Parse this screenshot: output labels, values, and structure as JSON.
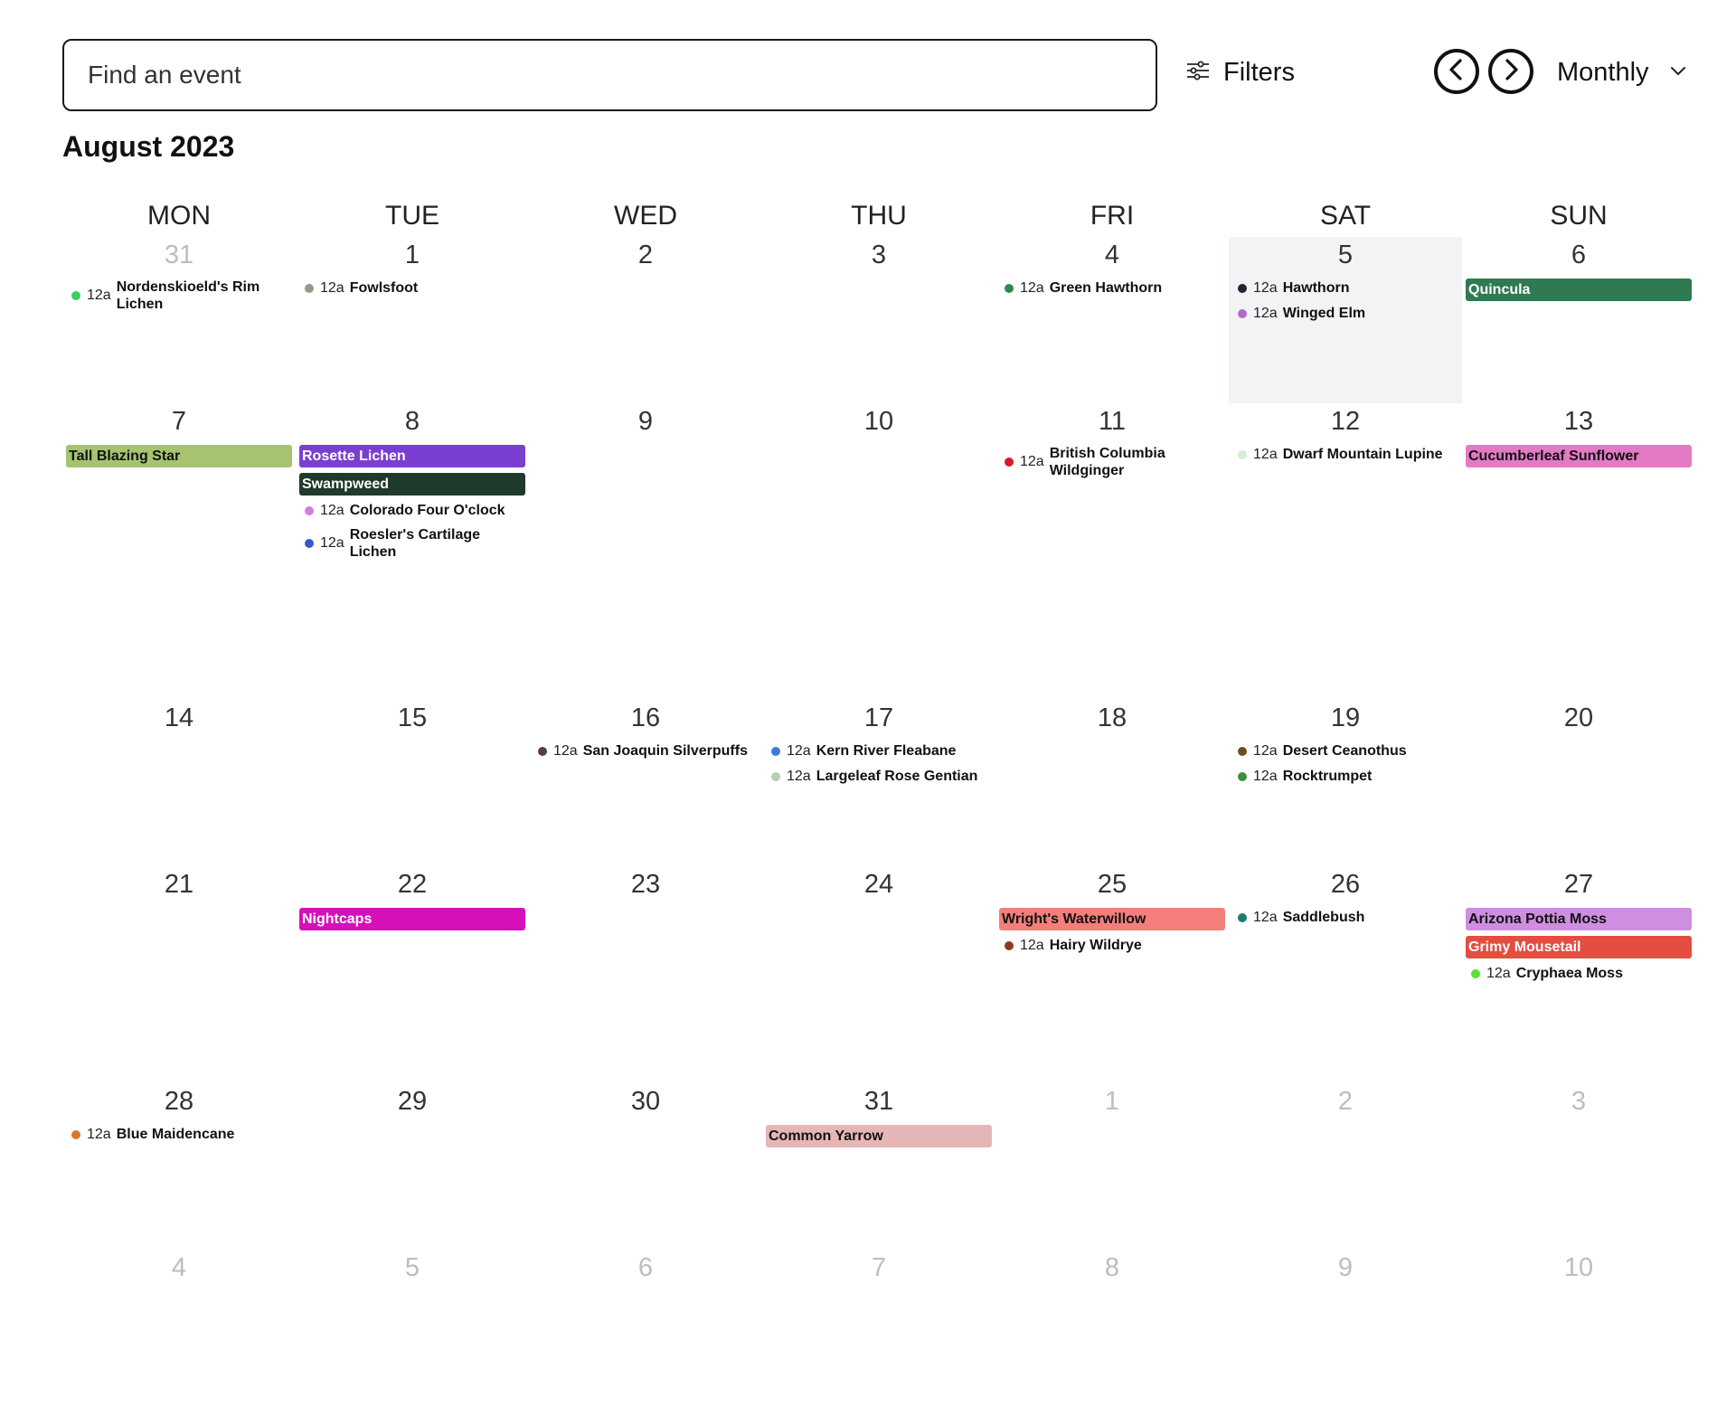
{
  "search": {
    "placeholder": "Find an event"
  },
  "filters": {
    "label": "Filters"
  },
  "view": {
    "label": "Monthly"
  },
  "month_title": "August 2023",
  "day_headers": [
    "MON",
    "TUE",
    "WED",
    "THU",
    "FRI",
    "SAT",
    "SUN"
  ],
  "weeks": [
    [
      {
        "day": "31",
        "other": true,
        "events": [
          {
            "kind": "dot",
            "time": "12a",
            "name": "Nordenskioeld's Rim Lichen",
            "color": "#3fcf5a"
          }
        ]
      },
      {
        "day": "1",
        "events": [
          {
            "kind": "dot",
            "time": "12a",
            "name": "Fowlsfoot",
            "color": "#949a8a"
          }
        ]
      },
      {
        "day": "2",
        "events": []
      },
      {
        "day": "3",
        "events": []
      },
      {
        "day": "4",
        "events": [
          {
            "kind": "dot",
            "time": "12a",
            "name": "Green Hawthorn",
            "color": "#2e8b4e"
          }
        ]
      },
      {
        "day": "5",
        "today": true,
        "events": [
          {
            "kind": "dot",
            "time": "12a",
            "name": "Hawthorn",
            "color": "#2c1f33"
          },
          {
            "kind": "dot",
            "time": "12a",
            "name": "Winged Elm",
            "color": "#b36bc6"
          }
        ]
      },
      {
        "day": "6",
        "events": [
          {
            "kind": "bar",
            "name": "Quincula",
            "bg": "#2f7a50",
            "fg": "#ffffff"
          }
        ]
      }
    ],
    [
      {
        "day": "7",
        "events": [
          {
            "kind": "bar",
            "name": "Tall Blazing Star",
            "bg": "#a6c46f",
            "fg": "#111111"
          }
        ]
      },
      {
        "day": "8",
        "events": [
          {
            "kind": "bar",
            "name": "Rosette Lichen",
            "bg": "#7a3fd1",
            "fg": "#ffffff"
          },
          {
            "kind": "bar",
            "name": "Swampweed",
            "bg": "#1f3a2b",
            "fg": "#ffffff"
          },
          {
            "kind": "dot",
            "time": "12a",
            "name": "Colorado Four O'clock",
            "color": "#d57be0"
          },
          {
            "kind": "dot",
            "time": "12a",
            "name": "Roesler's Cartilage Lichen",
            "color": "#3d57c9"
          }
        ]
      },
      {
        "day": "9",
        "events": []
      },
      {
        "day": "10",
        "events": []
      },
      {
        "day": "11",
        "events": [
          {
            "kind": "dot",
            "time": "12a",
            "name": "British Columbia Wildginger",
            "color": "#d91a2a"
          }
        ]
      },
      {
        "day": "12",
        "events": [
          {
            "kind": "dot",
            "time": "12a",
            "name": "Dwarf Mountain Lupine",
            "color": "#d8ecd8"
          }
        ]
      },
      {
        "day": "13",
        "events": [
          {
            "kind": "bar",
            "name": "Cucumberleaf Sunflower",
            "bg": "#e37ac4",
            "fg": "#111111"
          }
        ]
      }
    ],
    [
      {
        "day": "14",
        "events": []
      },
      {
        "day": "15",
        "events": []
      },
      {
        "day": "16",
        "events": [
          {
            "kind": "dot",
            "time": "12a",
            "name": "San Joaquin Silverpuffs",
            "color": "#5a3a4a"
          }
        ]
      },
      {
        "day": "17",
        "events": [
          {
            "kind": "dot",
            "time": "12a",
            "name": "Kern River Fleabane",
            "color": "#3b7bd1"
          },
          {
            "kind": "dot",
            "time": "12a",
            "name": "Largeleaf Rose Gentian",
            "color": "#b9ccb5"
          }
        ]
      },
      {
        "day": "18",
        "events": []
      },
      {
        "day": "19",
        "events": [
          {
            "kind": "dot",
            "time": "12a",
            "name": "Desert Ceanothus",
            "color": "#6b4f1e"
          },
          {
            "kind": "dot",
            "time": "12a",
            "name": "Rocktrumpet",
            "color": "#3c8f3c"
          }
        ]
      },
      {
        "day": "20",
        "events": []
      }
    ],
    [
      {
        "day": "21",
        "events": []
      },
      {
        "day": "22",
        "events": [
          {
            "kind": "bar",
            "name": "Nightcaps",
            "bg": "#d610b8",
            "fg": "#ffffff"
          }
        ]
      },
      {
        "day": "23",
        "events": []
      },
      {
        "day": "24",
        "events": []
      },
      {
        "day": "25",
        "events": [
          {
            "kind": "bar",
            "name": "Wright's Waterwillow",
            "bg": "#f47f7a",
            "fg": "#111111"
          },
          {
            "kind": "dot",
            "time": "12a",
            "name": "Hairy Wildrye",
            "color": "#8b3b22"
          }
        ]
      },
      {
        "day": "26",
        "events": [
          {
            "kind": "dot",
            "time": "12a",
            "name": "Saddlebush",
            "color": "#1f7a72"
          }
        ]
      },
      {
        "day": "27",
        "events": [
          {
            "kind": "bar",
            "name": "Arizona Pottia Moss",
            "bg": "#cf8ee0",
            "fg": "#111111"
          },
          {
            "kind": "bar",
            "name": "Grimy Mousetail",
            "bg": "#e54d40",
            "fg": "#ffffff"
          },
          {
            "kind": "dot",
            "time": "12a",
            "name": "Cryphaea Moss",
            "color": "#56e038"
          }
        ]
      }
    ],
    [
      {
        "day": "28",
        "events": [
          {
            "kind": "dot",
            "time": "12a",
            "name": "Blue Maidencane",
            "color": "#d9772c"
          }
        ]
      },
      {
        "day": "29",
        "events": []
      },
      {
        "day": "30",
        "events": []
      },
      {
        "day": "31",
        "events": [
          {
            "kind": "bar",
            "name": "Common Yarrow",
            "bg": "#e6b6b6",
            "fg": "#111111"
          }
        ]
      },
      {
        "day": "1",
        "other": true,
        "events": []
      },
      {
        "day": "2",
        "other": true,
        "events": []
      },
      {
        "day": "3",
        "other": true,
        "events": []
      }
    ],
    [
      {
        "day": "4",
        "other": true,
        "events": []
      },
      {
        "day": "5",
        "other": true,
        "events": []
      },
      {
        "day": "6",
        "other": true,
        "events": []
      },
      {
        "day": "7",
        "other": true,
        "events": []
      },
      {
        "day": "8",
        "other": true,
        "events": []
      },
      {
        "day": "9",
        "other": true,
        "events": []
      },
      {
        "day": "10",
        "other": true,
        "events": []
      }
    ]
  ],
  "icons": {
    "filters": "sliders-icon",
    "prev": "chevron-left-icon",
    "next": "chevron-right-icon",
    "view_dropdown": "chevron-down-icon"
  }
}
